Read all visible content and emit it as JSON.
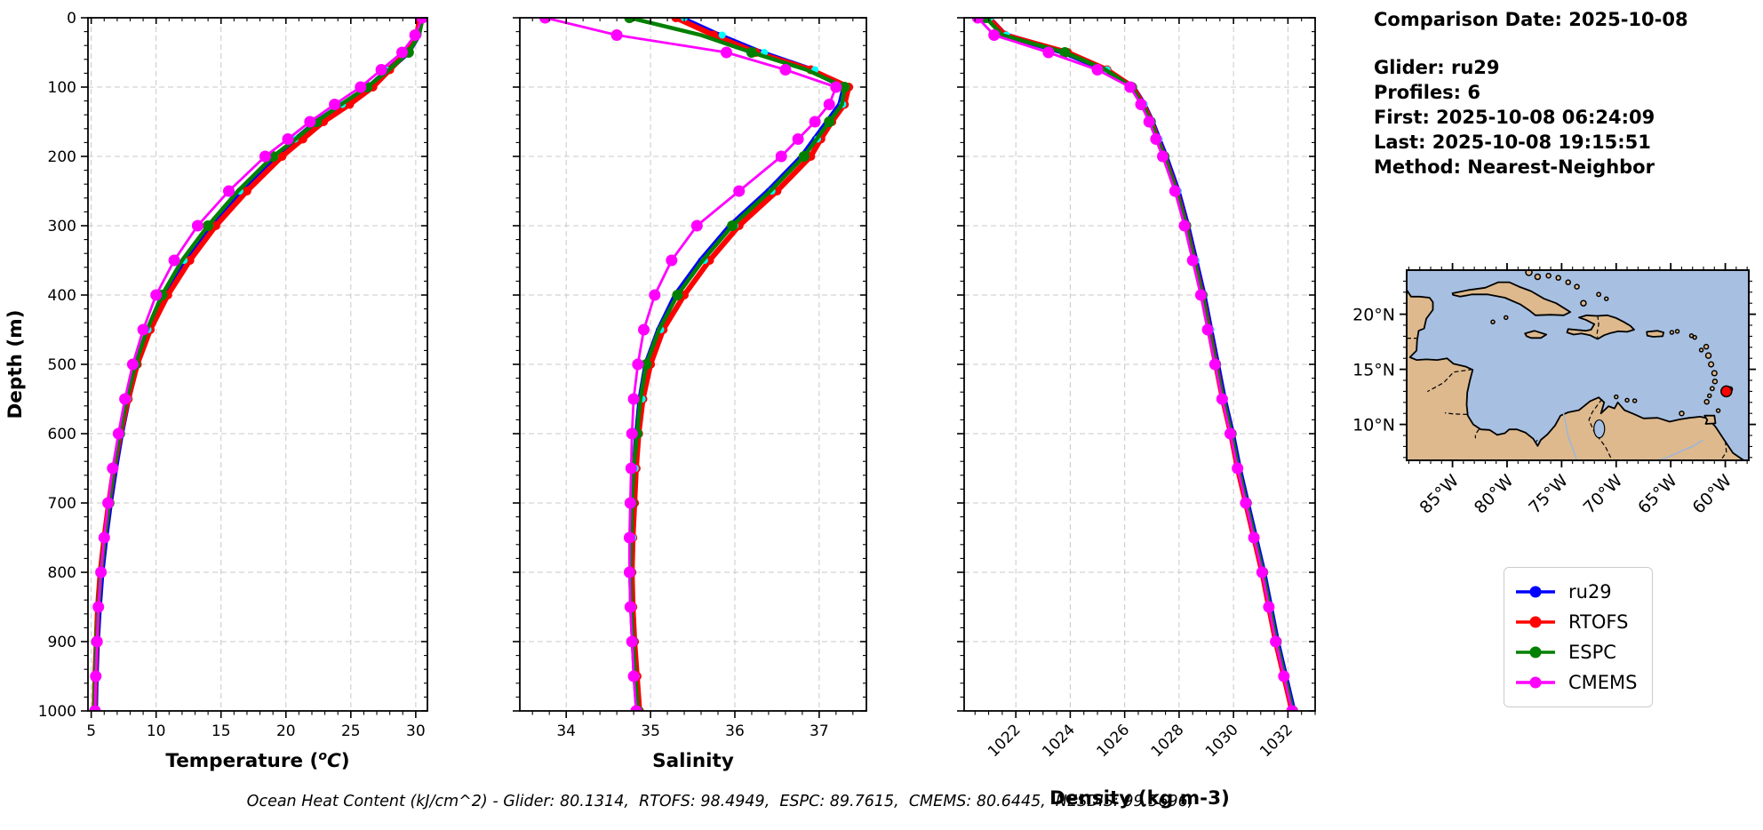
{
  "info_panel": {
    "comparison_date": "Comparison Date: 2025-10-08",
    "glider": "Glider: ru29",
    "profiles": "Profiles: 6",
    "first": "First: 2025-10-08 06:24:09",
    "last": "Last: 2025-10-08 19:15:51",
    "method": "Method: Nearest-Neighbor"
  },
  "footer": "Ocean Heat Content (kJ/cm^2) - Glider: 80.1314,  RTOFS: 98.4949,  ESPC: 89.7615,  CMEMS: 80.6445,  NESDIS: 99.5696,",
  "legend": {
    "items": [
      {
        "label": "ru29",
        "color": "#0000FF"
      },
      {
        "label": "RTOFS",
        "color": "#FF0000"
      },
      {
        "label": "ESPC",
        "color": "#008000"
      },
      {
        "label": "CMEMS",
        "color": "#FF00FF"
      }
    ]
  },
  "colors": {
    "ru29": "#0000FF",
    "RTOFS": "#FF0000",
    "ESPC": "#008000",
    "CMEMS": "#FF00FF",
    "NESDIS": "#00FFFF",
    "grid": "#c8c8c8",
    "ocean": "#a7c0e2",
    "land": "#ddb98d",
    "marker": "#FF0000"
  },
  "map": {
    "lat_ticks": [
      {
        "label": "20°N",
        "value": 20
      },
      {
        "label": "15°N",
        "value": 15
      },
      {
        "label": "10°N",
        "value": 10
      }
    ],
    "lon_ticks": [
      {
        "label": "85°W",
        "value": -85
      },
      {
        "label": "80°W",
        "value": -80
      },
      {
        "label": "75°W",
        "value": -75
      },
      {
        "label": "70°W",
        "value": -70
      },
      {
        "label": "65°W",
        "value": -65
      },
      {
        "label": "60°W",
        "value": -60
      }
    ],
    "marker": {
      "lat": 13.0,
      "lon": -59.9
    },
    "ocean_color": "#a7c0e2",
    "land_color": "#ddb98d",
    "marker_color": "#FF0000"
  },
  "chart_data": {
    "type": "line",
    "ylabel": "Depth (m)",
    "ylim": [
      0,
      1000
    ],
    "yticks": [
      0,
      100,
      200,
      300,
      400,
      500,
      600,
      700,
      800,
      900,
      1000
    ],
    "y_minor_step": 20,
    "depths": [
      0,
      25,
      50,
      75,
      100,
      125,
      150,
      175,
      200,
      250,
      300,
      350,
      400,
      450,
      500,
      550,
      600,
      650,
      700,
      750,
      800,
      850,
      900,
      950,
      1000
    ],
    "panels": [
      {
        "id": "temperature",
        "xlabel": "Temperature (°C)",
        "xlim": [
          4.75,
          30.9
        ],
        "xticks": [
          5,
          10,
          15,
          20,
          25,
          30
        ],
        "minor_step": 1,
        "tick_rotation": 0,
        "series": [
          {
            "name": "ru29",
            "color": "#0000FF",
            "values": [
              30.4,
              30.2,
              29.4,
              27.9,
              26.4,
              24.4,
              22.4,
              20.8,
              19.2,
              16.5,
              14.2,
              12.2,
              10.6,
              9.4,
              8.5,
              7.85,
              7.3,
              6.85,
              6.45,
              6.1,
              5.8,
              5.6,
              5.45,
              5.35,
              5.3
            ]
          },
          {
            "name": "RTOFS",
            "color": "#FF0000",
            "values": [
              30.3,
              30.1,
              29.3,
              28.0,
              26.7,
              24.9,
              22.9,
              21.3,
              19.7,
              17.0,
              14.6,
              12.6,
              10.9,
              9.55,
              8.55,
              7.85,
              7.25,
              6.75,
              6.35,
              6.0,
              5.7,
              5.5,
              5.4,
              5.3,
              5.25
            ]
          },
          {
            "name": "NESDIS",
            "color": "#00FFFF",
            "values": [
              30.45,
              30.15,
              29.3,
              27.75,
              26.3,
              24.35,
              22.3,
              20.7,
              19.15,
              16.45,
              14.15,
              12.15,
              10.55,
              9.38,
              8.48,
              7.82,
              7.28,
              6.82,
              6.42,
              6.08,
              5.78,
              5.58,
              5.43,
              5.33,
              5.28
            ]
          },
          {
            "name": "ESPC",
            "color": "#008000",
            "values": [
              30.55,
              30.25,
              29.45,
              27.95,
              26.25,
              24.25,
              22.35,
              20.75,
              19.0,
              16.3,
              14.0,
              12.0,
              10.45,
              9.3,
              8.4,
              7.75,
              7.2,
              6.75,
              6.38,
              6.05,
              5.75,
              5.55,
              5.4,
              5.3,
              5.25
            ]
          },
          {
            "name": "CMEMS",
            "color": "#FF00FF",
            "values": [
              30.5,
              29.95,
              28.95,
              27.35,
              25.75,
              23.75,
              21.85,
              20.15,
              18.4,
              15.6,
              13.2,
              11.4,
              10.0,
              9.0,
              8.2,
              7.6,
              7.1,
              6.65,
              6.3,
              6.0,
              5.75,
              5.55,
              5.45,
              5.35,
              5.3
            ]
          }
        ]
      },
      {
        "id": "salinity",
        "xlabel": "Salinity",
        "xlim": [
          33.45,
          37.56
        ],
        "xticks": [
          34,
          35,
          36,
          37
        ],
        "minor_step": 0.2,
        "tick_rotation": 0,
        "series": [
          {
            "name": "ru29",
            "color": "#0000FF",
            "values": [
              35.35,
              35.8,
              36.3,
              36.9,
              37.3,
              37.25,
              37.1,
              36.95,
              36.8,
              36.4,
              35.95,
              35.6,
              35.3,
              35.1,
              34.95,
              34.88,
              34.84,
              34.81,
              34.79,
              34.78,
              34.77,
              34.78,
              34.8,
              34.82,
              34.85
            ]
          },
          {
            "name": "RTOFS",
            "color": "#FF0000",
            "values": [
              35.3,
              35.75,
              36.25,
              36.9,
              37.35,
              37.3,
              37.15,
              37.02,
              36.9,
              36.5,
              36.05,
              35.7,
              35.4,
              35.15,
              35.0,
              34.91,
              34.86,
              34.83,
              34.81,
              34.79,
              34.78,
              34.79,
              34.81,
              34.84,
              34.87
            ]
          },
          {
            "name": "NESDIS",
            "color": "#00FFFF",
            "values": [
              35.4,
              35.85,
              36.35,
              36.95,
              37.32,
              37.28,
              37.13,
              36.98,
              36.83,
              36.44,
              36.0,
              35.64,
              35.34,
              35.12,
              34.97,
              34.9,
              34.86,
              34.82,
              34.8,
              34.79,
              34.78,
              34.79,
              34.81,
              34.83,
              34.86
            ]
          },
          {
            "name": "ESPC",
            "color": "#008000",
            "values": [
              34.75,
              35.6,
              36.2,
              36.85,
              37.3,
              37.27,
              37.12,
              36.97,
              36.82,
              36.42,
              35.97,
              35.62,
              35.32,
              35.1,
              34.95,
              34.88,
              34.84,
              34.8,
              34.78,
              34.77,
              34.76,
              34.77,
              34.79,
              34.82,
              34.85
            ]
          },
          {
            "name": "CMEMS",
            "color": "#FF00FF",
            "values": [
              33.75,
              34.6,
              35.9,
              36.6,
              37.2,
              37.12,
              36.95,
              36.75,
              36.55,
              36.05,
              35.55,
              35.25,
              35.05,
              34.92,
              34.85,
              34.8,
              34.78,
              34.77,
              34.76,
              34.75,
              34.75,
              34.76,
              34.78,
              34.8,
              34.83
            ]
          }
        ]
      },
      {
        "id": "density",
        "xlabel": "Density (kg m-3)",
        "xlim": [
          1020.1,
          1033.0
        ],
        "xticks": [
          1022,
          1024,
          1026,
          1028,
          1030,
          1032
        ],
        "minor_step": 0.5,
        "tick_rotation": 45,
        "series": [
          {
            "name": "ru29",
            "color": "#0000FF",
            "values": [
              1021.0,
              1021.6,
              1023.8,
              1025.3,
              1026.3,
              1026.7,
              1027.0,
              1027.25,
              1027.5,
              1027.95,
              1028.3,
              1028.6,
              1028.9,
              1029.15,
              1029.4,
              1029.65,
              1029.95,
              1030.2,
              1030.5,
              1030.8,
              1031.1,
              1031.35,
              1031.6,
              1031.9,
              1032.2
            ]
          },
          {
            "name": "RTOFS",
            "color": "#FF0000",
            "values": [
              1021.0,
              1021.6,
              1023.9,
              1025.35,
              1026.3,
              1026.68,
              1026.98,
              1027.2,
              1027.45,
              1027.9,
              1028.25,
              1028.55,
              1028.85,
              1029.1,
              1029.35,
              1029.6,
              1029.9,
              1030.15,
              1030.45,
              1030.75,
              1031.05,
              1031.3,
              1031.55,
              1031.85,
              1032.15
            ]
          },
          {
            "name": "NESDIS",
            "color": "#00FFFF",
            "values": [
              1021.05,
              1021.65,
              1023.85,
              1025.35,
              1026.32,
              1026.72,
              1027.02,
              1027.27,
              1027.52,
              1027.97,
              1028.32,
              1028.62,
              1028.92,
              1029.17,
              1029.42,
              1029.67,
              1029.97,
              1030.22,
              1030.52,
              1030.82,
              1031.12,
              1031.37,
              1031.62,
              1031.92,
              1032.22
            ]
          },
          {
            "name": "ESPC",
            "color": "#008000",
            "values": [
              1020.9,
              1021.5,
              1023.8,
              1025.3,
              1026.25,
              1026.65,
              1026.95,
              1027.2,
              1027.45,
              1027.9,
              1028.25,
              1028.55,
              1028.85,
              1029.1,
              1029.35,
              1029.62,
              1029.92,
              1030.18,
              1030.48,
              1030.78,
              1031.08,
              1031.33,
              1031.58,
              1031.88,
              1032.18
            ]
          },
          {
            "name": "CMEMS",
            "color": "#FF00FF",
            "values": [
              1020.6,
              1021.2,
              1023.2,
              1025.0,
              1026.2,
              1026.6,
              1026.9,
              1027.15,
              1027.4,
              1027.85,
              1028.2,
              1028.5,
              1028.8,
              1029.05,
              1029.32,
              1029.58,
              1029.88,
              1030.15,
              1030.45,
              1030.75,
              1031.05,
              1031.3,
              1031.55,
              1031.85,
              1032.15
            ]
          }
        ]
      }
    ]
  }
}
